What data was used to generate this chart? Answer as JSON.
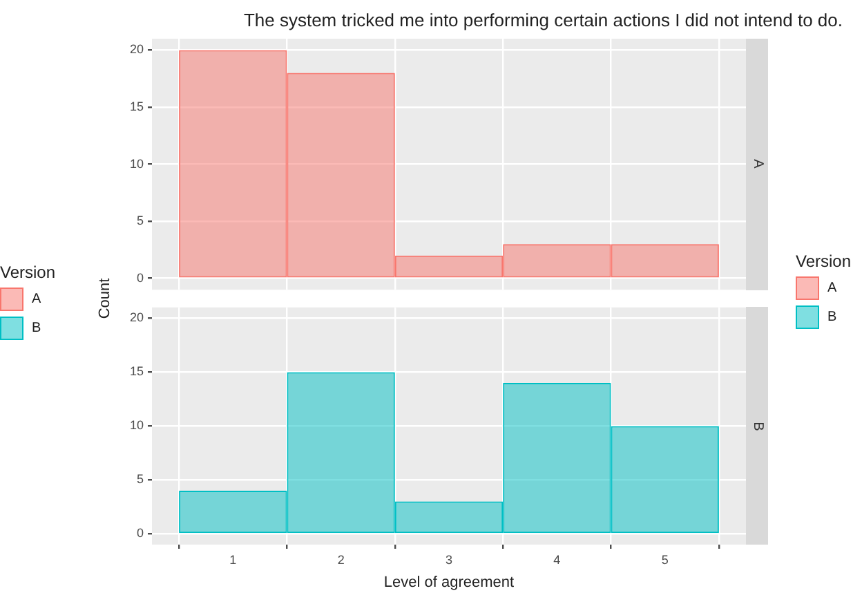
{
  "chart_data": [
    {
      "type": "histogram",
      "title": "The system tricked me into performing certain actions I did not intend to do.",
      "subtitle": "A",
      "ylabel": "Count",
      "legend_title": "Version",
      "bins": [
        0.5,
        1.5,
        2.5,
        3.5,
        4.5,
        5.5
      ],
      "series": [
        {
          "name": "A",
          "color": "#f8766d",
          "values": [
            20,
            18,
            2,
            3,
            3
          ]
        }
      ],
      "xlim": [
        0.25,
        5.75
      ],
      "xticks": [
        1,
        2,
        3,
        4,
        5
      ],
      "ylim": [
        -1,
        21
      ],
      "yticks": [
        0,
        5,
        10,
        15,
        20
      ],
      "grid": true,
      "legend": "left",
      "tick_labels": "y"
    },
    {
      "type": "histogram",
      "subtitle": "B",
      "xlabel": "Level of agreement",
      "legend_title": "Version",
      "bins": [
        0.5,
        1.5,
        2.5,
        3.5,
        4.5,
        5.5
      ],
      "series": [
        {
          "name": "B",
          "color": "#00bfc4",
          "values": [
            4,
            15,
            3,
            14,
            10
          ]
        }
      ],
      "xlim": [
        0.25,
        5.75
      ],
      "xticks": [
        1,
        2,
        3,
        4,
        5
      ],
      "ylim": [
        -1,
        21
      ],
      "yticks": [
        0,
        5,
        10,
        15,
        20
      ],
      "grid": true,
      "legend": "right"
    }
  ]
}
